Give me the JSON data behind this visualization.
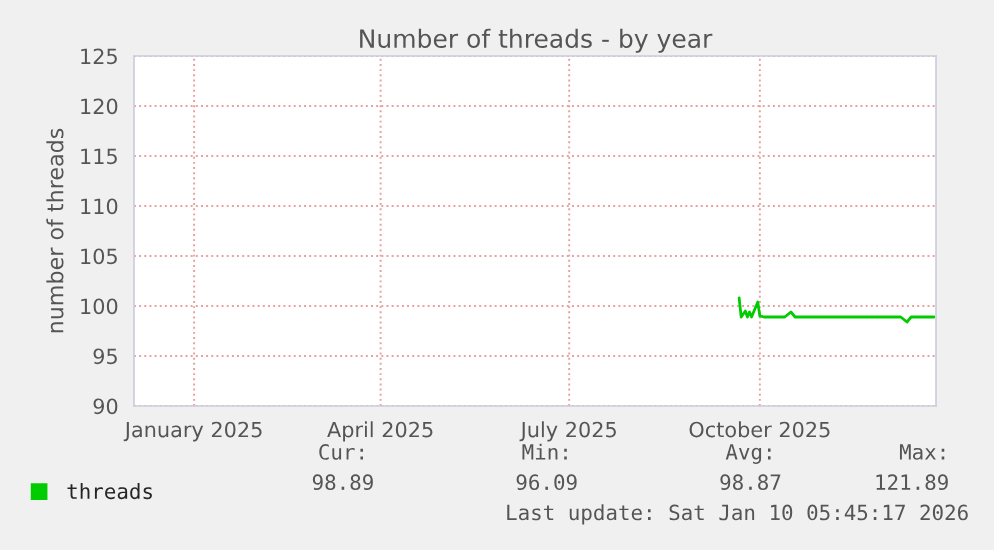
{
  "chart_data": {
    "type": "line",
    "title": "Number of threads - by year",
    "ylabel": "number of threads",
    "x": [
      "2025-09-21",
      "2025-09-22",
      "2025-09-24",
      "2025-09-25",
      "2025-09-26",
      "2025-09-27",
      "2025-09-30",
      "2025-10-01",
      "2025-10-03",
      "2025-10-13",
      "2025-10-16",
      "2025-10-18",
      "2025-11-10",
      "2025-12-08",
      "2025-12-11",
      "2025-12-13",
      "2025-12-24"
    ],
    "series": [
      {
        "name": "threads",
        "color": "#00cc00",
        "values": [
          100.8,
          98.9,
          99.5,
          98.9,
          99.4,
          98.9,
          100.4,
          99.0,
          98.9,
          98.9,
          99.4,
          98.9,
          98.9,
          98.9,
          98.4,
          98.9,
          98.9
        ]
      }
    ],
    "xlim": [
      "2024-12-03",
      "2025-12-25"
    ],
    "xticks": [
      {
        "value": "2025-01-01",
        "label": "January 2025"
      },
      {
        "value": "2025-04-01",
        "label": "April 2025"
      },
      {
        "value": "2025-07-01",
        "label": "July 2025"
      },
      {
        "value": "2025-10-01",
        "label": "October 2025"
      }
    ],
    "ylim": [
      90,
      125
    ],
    "yticks": [
      90,
      95,
      100,
      105,
      110,
      115,
      120,
      125
    ],
    "grid": true,
    "legend": "bottom left",
    "marker": "none",
    "line_style": "solid",
    "annotations": [
      "Cur:",
      "98.89",
      "Min:",
      "96.09",
      "Avg:",
      "98.87",
      "Max:",
      "121.89",
      "Last update: Sat Jan 10 05:45:17 2026"
    ]
  }
}
